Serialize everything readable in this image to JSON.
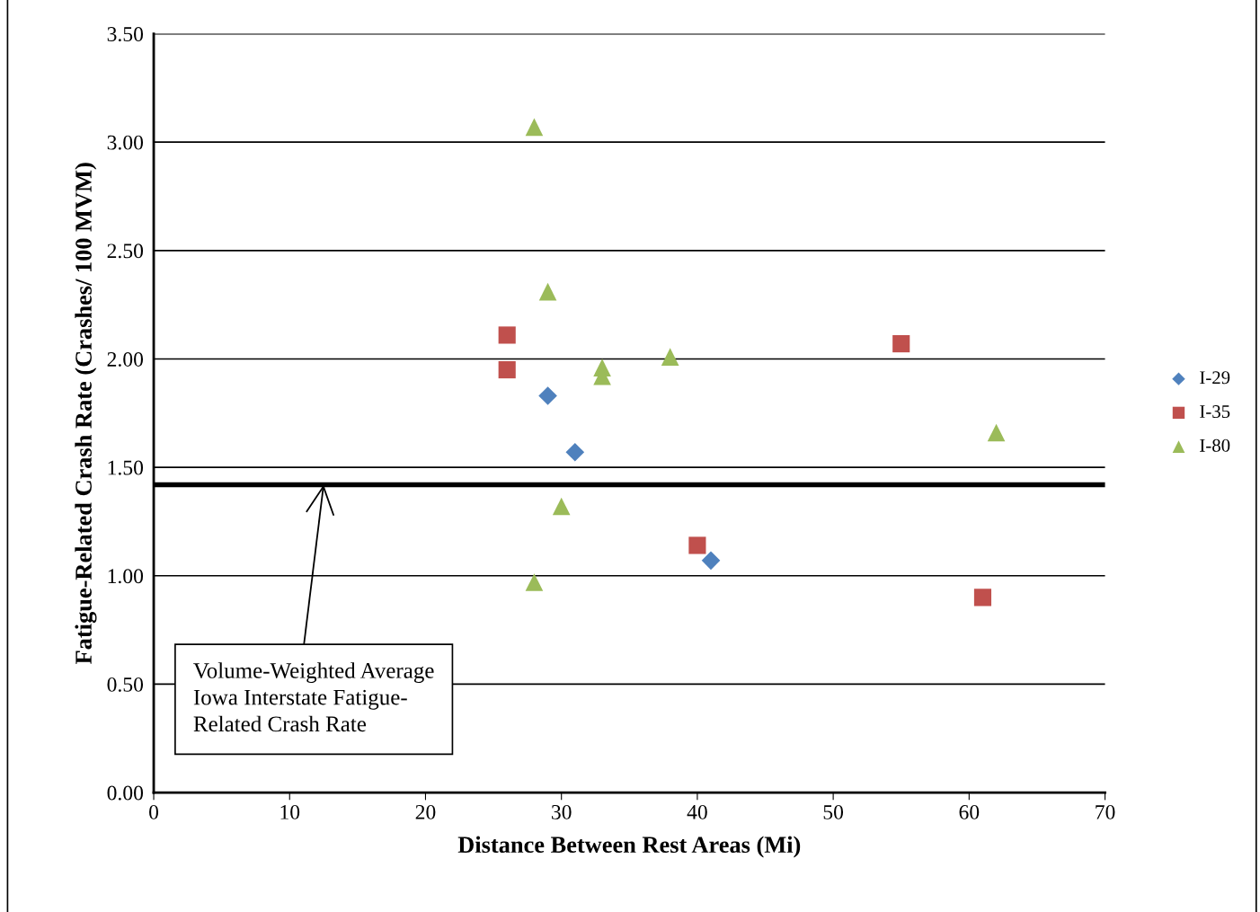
{
  "chart_data": {
    "type": "scatter",
    "xlabel": "Distance Between Rest Areas (Mi)",
    "ylabel": "Fatigue-Related Crash Rate (Crashes/ 100 MVM)",
    "xlim": [
      0,
      70
    ],
    "xticks": [
      0,
      10,
      20,
      30,
      40,
      50,
      60,
      70
    ],
    "ylim": [
      0,
      3.5
    ],
    "yticks": [
      {
        "value": 0,
        "label": "0.00"
      },
      {
        "value": 0.5,
        "label": "0.50"
      },
      {
        "value": 1,
        "label": "1.00"
      },
      {
        "value": 1.5,
        "label": "1.50"
      },
      {
        "value": 2,
        "label": "2.00"
      },
      {
        "value": 2.5,
        "label": "2.50"
      },
      {
        "value": 3,
        "label": "3.00"
      },
      {
        "value": 3.5,
        "label": "3.50"
      }
    ],
    "grid": "y",
    "legend": "right",
    "series": [
      {
        "name": "I-29",
        "color": "#4f81bd",
        "marker": "diamond",
        "x": [
          29,
          31,
          41
        ],
        "values": [
          1.83,
          1.57,
          1.07
        ]
      },
      {
        "name": "I-35",
        "color": "#c0504d",
        "marker": "square",
        "x": [
          26,
          26,
          55,
          40,
          61
        ],
        "values": [
          2.11,
          1.95,
          2.07,
          1.14,
          0.9
        ]
      },
      {
        "name": "I-80",
        "color": "#9bbb59",
        "marker": "triangle",
        "x": [
          28,
          29,
          33,
          33,
          38,
          62,
          30,
          28
        ],
        "values": [
          3.07,
          2.31,
          1.96,
          1.92,
          2.01,
          1.66,
          1.32,
          0.97
        ]
      }
    ],
    "ref_lines": [
      {
        "axis": "y",
        "value": 1.42,
        "color": "#000000"
      }
    ],
    "annotations": [
      {
        "text": "Volume-Weighted Average\nIowa Interstate Fatigue-\nRelated Crash Rate",
        "x": 12.5,
        "y": 1.42
      }
    ]
  }
}
